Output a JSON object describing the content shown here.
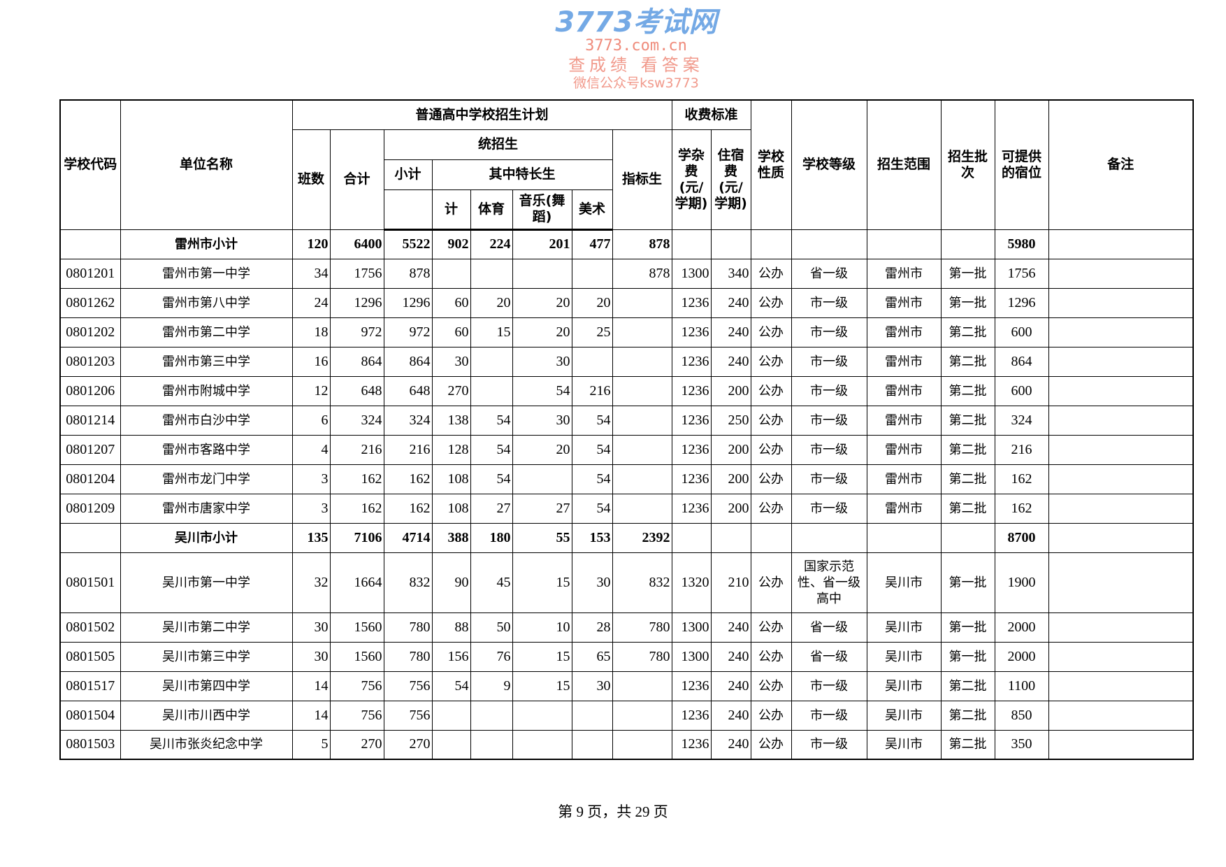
{
  "header": {
    "code": "学校代码",
    "name": "单位名称",
    "plan": "普通高中学校招生计划",
    "fee": "收费标准",
    "nature": "学校性质",
    "grade": "学校等级",
    "scope": "招生范围",
    "batch": "招生批次",
    "beds": "可提供的宿位",
    "remark": "备注",
    "classes": "班数",
    "total": "合计",
    "unified": "统招生",
    "quota": "指标生",
    "tuition": "学杂费(元/学期)",
    "dorm": "住宿费(元/学期)",
    "subtotal": "小计",
    "special": "其中特长生",
    "sp_total": "计",
    "sports": "体育",
    "music": "音乐(舞蹈)",
    "art": "美术"
  },
  "rows": [
    {
      "sub": true,
      "cells": [
        "",
        "雷州市小计",
        "120",
        "6400",
        "5522",
        "902",
        "224",
        "201",
        "477",
        "878",
        "",
        "",
        "",
        "",
        "",
        "",
        "5980",
        ""
      ]
    },
    {
      "cells": [
        "0801201",
        "雷州市第一中学",
        "34",
        "1756",
        "878",
        "",
        "",
        "",
        "",
        "878",
        "1300",
        "340",
        "公办",
        "省一级",
        "雷州市",
        "第一批",
        "1756",
        ""
      ]
    },
    {
      "cells": [
        "0801262",
        "雷州市第八中学",
        "24",
        "1296",
        "1296",
        "60",
        "20",
        "20",
        "20",
        "",
        "1236",
        "240",
        "公办",
        "市一级",
        "雷州市",
        "第一批",
        "1296",
        ""
      ]
    },
    {
      "cells": [
        "0801202",
        "雷州市第二中学",
        "18",
        "972",
        "972",
        "60",
        "15",
        "20",
        "25",
        "",
        "1236",
        "240",
        "公办",
        "市一级",
        "雷州市",
        "第二批",
        "600",
        ""
      ]
    },
    {
      "cells": [
        "0801203",
        "雷州市第三中学",
        "16",
        "864",
        "864",
        "30",
        "",
        "30",
        "",
        "",
        "1236",
        "240",
        "公办",
        "市一级",
        "雷州市",
        "第二批",
        "864",
        ""
      ]
    },
    {
      "cells": [
        "0801206",
        "雷州市附城中学",
        "12",
        "648",
        "648",
        "270",
        "",
        "54",
        "216",
        "",
        "1236",
        "200",
        "公办",
        "市一级",
        "雷州市",
        "第二批",
        "600",
        ""
      ]
    },
    {
      "cells": [
        "0801214",
        "雷州市白沙中学",
        "6",
        "324",
        "324",
        "138",
        "54",
        "30",
        "54",
        "",
        "1236",
        "250",
        "公办",
        "市一级",
        "雷州市",
        "第二批",
        "324",
        ""
      ]
    },
    {
      "cells": [
        "0801207",
        "雷州市客路中学",
        "4",
        "216",
        "216",
        "128",
        "54",
        "20",
        "54",
        "",
        "1236",
        "200",
        "公办",
        "市一级",
        "雷州市",
        "第二批",
        "216",
        ""
      ]
    },
    {
      "cells": [
        "0801204",
        "雷州市龙门中学",
        "3",
        "162",
        "162",
        "108",
        "54",
        "",
        "54",
        "",
        "1236",
        "200",
        "公办",
        "市一级",
        "雷州市",
        "第二批",
        "162",
        ""
      ]
    },
    {
      "cells": [
        "0801209",
        "雷州市唐家中学",
        "3",
        "162",
        "162",
        "108",
        "27",
        "27",
        "54",
        "",
        "1236",
        "200",
        "公办",
        "市一级",
        "雷州市",
        "第二批",
        "162",
        ""
      ]
    },
    {
      "sub": true,
      "cells": [
        "",
        "吴川市小计",
        "135",
        "7106",
        "4714",
        "388",
        "180",
        "55",
        "153",
        "2392",
        "",
        "",
        "",
        "",
        "",
        "",
        "8700",
        ""
      ]
    },
    {
      "tall": true,
      "cells": [
        "0801501",
        "吴川市第一中学",
        "32",
        "1664",
        "832",
        "90",
        "45",
        "15",
        "30",
        "832",
        "1320",
        "210",
        "公办",
        "国家示范性、省一级高中",
        "吴川市",
        "第一批",
        "1900",
        ""
      ]
    },
    {
      "cells": [
        "0801502",
        "吴川市第二中学",
        "30",
        "1560",
        "780",
        "88",
        "50",
        "10",
        "28",
        "780",
        "1300",
        "240",
        "公办",
        "省一级",
        "吴川市",
        "第一批",
        "2000",
        ""
      ]
    },
    {
      "cells": [
        "0801505",
        "吴川市第三中学",
        "30",
        "1560",
        "780",
        "156",
        "76",
        "15",
        "65",
        "780",
        "1300",
        "240",
        "公办",
        "省一级",
        "吴川市",
        "第一批",
        "2000",
        ""
      ]
    },
    {
      "cells": [
        "0801517",
        "吴川市第四中学",
        "14",
        "756",
        "756",
        "54",
        "9",
        "15",
        "30",
        "",
        "1236",
        "240",
        "公办",
        "市一级",
        "吴川市",
        "第二批",
        "1100",
        ""
      ]
    },
    {
      "cells": [
        "0801504",
        "吴川市川西中学",
        "14",
        "756",
        "756",
        "",
        "",
        "",
        "",
        "",
        "1236",
        "240",
        "公办",
        "市一级",
        "吴川市",
        "第二批",
        "850",
        ""
      ]
    },
    {
      "cells": [
        "0801503",
        "吴川市张炎纪念中学",
        "5",
        "270",
        "270",
        "",
        "",
        "",
        "",
        "",
        "1236",
        "240",
        "公办",
        "市一级",
        "吴川市",
        "第二批",
        "350",
        ""
      ]
    }
  ],
  "watermark": {
    "logo": "3773考试网",
    "url": "3773.com.cn",
    "slogan": "查成绩 看答案",
    "wechat": "微信公众号ksw3773"
  },
  "footer": "第 9 页，共 29 页"
}
